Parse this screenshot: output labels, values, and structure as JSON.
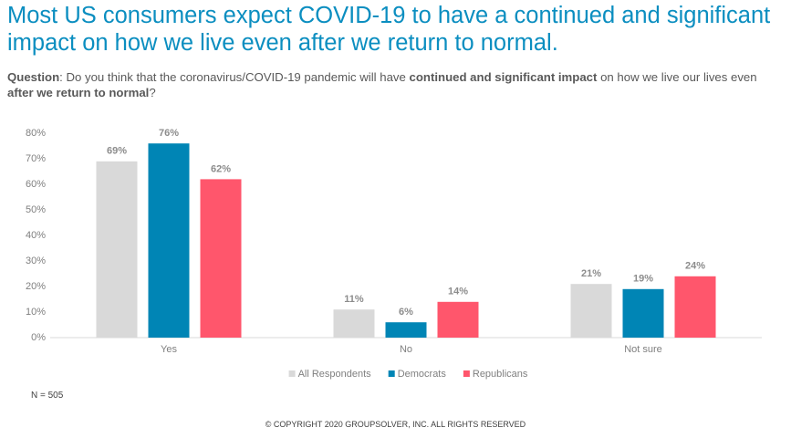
{
  "chart_data": {
    "type": "bar",
    "title": "Most US consumers expect COVID-19 to have a continued and significant impact on how we live even after we return to normal.",
    "subtitle_parts": [
      "Question",
      ": Do you think that the coronavirus/COVID-19 pandemic will have ",
      "continued and significant impact",
      " on how we live our lives even ",
      "after we return to normal",
      "?"
    ],
    "categories": [
      "Yes",
      "No",
      "Not sure"
    ],
    "series": [
      {
        "name": "All Respondents",
        "color": "#d9d9d9",
        "values": [
          69,
          11,
          21
        ],
        "value_labels": [
          "69%",
          "11%",
          "21%"
        ]
      },
      {
        "name": "Democrats",
        "color": "#0085b5",
        "values": [
          76,
          6,
          19
        ],
        "value_labels": [
          "76%",
          "6%",
          "19%"
        ]
      },
      {
        "name": "Republicans",
        "color": "#ff566c",
        "values": [
          62,
          14,
          24
        ],
        "value_labels": [
          "62%",
          "14%",
          "24%"
        ]
      }
    ],
    "ylim": [
      0,
      80
    ],
    "yticks": [
      {
        "value": 0,
        "label": "0%"
      },
      {
        "value": 10,
        "label": "10%"
      },
      {
        "value": 20,
        "label": "20%"
      },
      {
        "value": 30,
        "label": "30%"
      },
      {
        "value": 40,
        "label": "40%"
      },
      {
        "value": 50,
        "label": "50%"
      },
      {
        "value": 60,
        "label": "60%"
      },
      {
        "value": 70,
        "label": "70%"
      },
      {
        "value": 80,
        "label": "80%"
      }
    ],
    "grid": false,
    "legend": "bottom",
    "note": "N = 505",
    "footer": "© COPYRIGHT 2020 GROUPSOLVER, INC. ALL RIGHTS RESERVED"
  }
}
